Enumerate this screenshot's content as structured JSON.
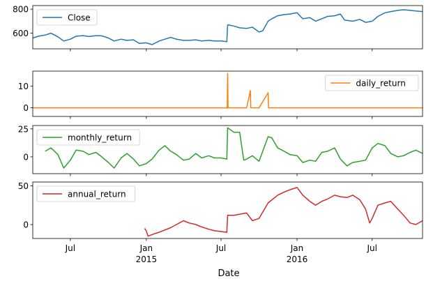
{
  "chart_data": {
    "type": "line",
    "xlabel": "Date",
    "x_range": [
      "2014-04-01",
      "2016-10-31"
    ],
    "x_ticks": [
      {
        "date": "2014-07-01",
        "label": "Jul",
        "sub": "",
        "major": false
      },
      {
        "date": "2015-01-01",
        "label": "Jan",
        "sub": "2015",
        "major": true
      },
      {
        "date": "2015-07-01",
        "label": "Jul",
        "sub": "",
        "major": false
      },
      {
        "date": "2016-01-01",
        "label": "Jan",
        "sub": "2016",
        "major": true
      },
      {
        "date": "2016-07-01",
        "label": "Jul",
        "sub": "",
        "major": false
      }
    ],
    "panels": [
      {
        "name": "Close",
        "color": "#1f77b4",
        "ylim": [
          470,
          830
        ],
        "yticks": [
          600,
          800
        ],
        "legend": "top-left",
        "points": [
          [
            "2014-04-01",
            560
          ],
          [
            "2014-04-15",
            575
          ],
          [
            "2014-05-01",
            585
          ],
          [
            "2014-05-15",
            600
          ],
          [
            "2014-06-01",
            570
          ],
          [
            "2014-06-15",
            535
          ],
          [
            "2014-07-01",
            550
          ],
          [
            "2014-07-15",
            575
          ],
          [
            "2014-08-01",
            580
          ],
          [
            "2014-08-15",
            572
          ],
          [
            "2014-09-01",
            580
          ],
          [
            "2014-09-15",
            578
          ],
          [
            "2014-10-01",
            560
          ],
          [
            "2014-10-15",
            535
          ],
          [
            "2014-11-01",
            550
          ],
          [
            "2014-11-15",
            540
          ],
          [
            "2014-12-01",
            545
          ],
          [
            "2014-12-15",
            515
          ],
          [
            "2015-01-01",
            520
          ],
          [
            "2015-01-15",
            505
          ],
          [
            "2015-02-01",
            535
          ],
          [
            "2015-02-15",
            550
          ],
          [
            "2015-03-01",
            565
          ],
          [
            "2015-03-15",
            550
          ],
          [
            "2015-04-01",
            540
          ],
          [
            "2015-04-15",
            540
          ],
          [
            "2015-05-01",
            545
          ],
          [
            "2015-05-15",
            535
          ],
          [
            "2015-06-01",
            540
          ],
          [
            "2015-06-15",
            535
          ],
          [
            "2015-07-01",
            535
          ],
          [
            "2015-07-15",
            530
          ],
          [
            "2015-07-17",
            670
          ],
          [
            "2015-08-01",
            660
          ],
          [
            "2015-08-15",
            645
          ],
          [
            "2015-09-01",
            640
          ],
          [
            "2015-09-15",
            650
          ],
          [
            "2015-10-01",
            610
          ],
          [
            "2015-10-10",
            620
          ],
          [
            "2015-10-23",
            700
          ],
          [
            "2015-11-01",
            720
          ],
          [
            "2015-11-15",
            745
          ],
          [
            "2015-12-01",
            755
          ],
          [
            "2015-12-15",
            760
          ],
          [
            "2016-01-01",
            770
          ],
          [
            "2016-01-15",
            720
          ],
          [
            "2016-02-01",
            730
          ],
          [
            "2016-02-15",
            700
          ],
          [
            "2016-03-01",
            720
          ],
          [
            "2016-03-15",
            740
          ],
          [
            "2016-04-01",
            745
          ],
          [
            "2016-04-15",
            760
          ],
          [
            "2016-04-25",
            710
          ],
          [
            "2016-05-15",
            700
          ],
          [
            "2016-06-01",
            715
          ],
          [
            "2016-06-15",
            690
          ],
          [
            "2016-07-01",
            700
          ],
          [
            "2016-07-15",
            740
          ],
          [
            "2016-08-01",
            770
          ],
          [
            "2016-08-15",
            780
          ],
          [
            "2016-09-01",
            790
          ],
          [
            "2016-09-15",
            795
          ],
          [
            "2016-10-01",
            790
          ],
          [
            "2016-10-15",
            785
          ],
          [
            "2016-10-31",
            780
          ]
        ]
      },
      {
        "name": "daily_return",
        "color": "#ff7f0e",
        "ylim": [
          -4,
          17
        ],
        "yticks": [
          0,
          10
        ],
        "legend": "top-right",
        "points": [
          [
            "2014-04-01",
            0
          ],
          [
            "2014-06-01",
            0
          ],
          [
            "2014-08-01",
            0
          ],
          [
            "2014-10-01",
            0
          ],
          [
            "2014-12-01",
            0
          ],
          [
            "2015-02-01",
            0
          ],
          [
            "2015-04-01",
            0
          ],
          [
            "2015-06-01",
            0
          ],
          [
            "2015-07-16",
            0
          ],
          [
            "2015-07-17",
            16
          ],
          [
            "2015-07-18",
            0
          ],
          [
            "2015-08-01",
            0
          ],
          [
            "2015-09-01",
            0
          ],
          [
            "2015-09-10",
            8
          ],
          [
            "2015-09-11",
            0
          ],
          [
            "2015-10-01",
            0
          ],
          [
            "2015-10-23",
            7
          ],
          [
            "2015-10-24",
            0
          ],
          [
            "2016-01-01",
            0
          ],
          [
            "2016-03-01",
            0
          ],
          [
            "2016-05-01",
            0
          ],
          [
            "2016-07-01",
            0
          ],
          [
            "2016-09-01",
            0
          ],
          [
            "2016-10-31",
            0
          ]
        ]
      },
      {
        "name": "monthly_return",
        "color": "#2ca02c",
        "ylim": [
          -15,
          28
        ],
        "yticks": [
          0,
          25
        ],
        "legend": "top-left",
        "points": [
          [
            "2014-05-01",
            5
          ],
          [
            "2014-05-15",
            8
          ],
          [
            "2014-06-01",
            2
          ],
          [
            "2014-06-15",
            -10
          ],
          [
            "2014-07-01",
            -3
          ],
          [
            "2014-07-15",
            6
          ],
          [
            "2014-08-01",
            5
          ],
          [
            "2014-08-15",
            2
          ],
          [
            "2014-09-01",
            4
          ],
          [
            "2014-09-15",
            0
          ],
          [
            "2014-10-01",
            -5
          ],
          [
            "2014-10-15",
            -10
          ],
          [
            "2014-11-01",
            -1
          ],
          [
            "2014-11-15",
            3
          ],
          [
            "2014-12-01",
            -2
          ],
          [
            "2014-12-15",
            -8
          ],
          [
            "2015-01-01",
            -6
          ],
          [
            "2015-01-15",
            -2
          ],
          [
            "2015-02-01",
            6
          ],
          [
            "2015-02-15",
            10
          ],
          [
            "2015-03-01",
            5
          ],
          [
            "2015-03-15",
            2
          ],
          [
            "2015-04-01",
            -3
          ],
          [
            "2015-04-15",
            -2
          ],
          [
            "2015-05-01",
            3
          ],
          [
            "2015-05-15",
            -1
          ],
          [
            "2015-06-01",
            1
          ],
          [
            "2015-06-15",
            -1
          ],
          [
            "2015-07-01",
            -1
          ],
          [
            "2015-07-15",
            -2
          ],
          [
            "2015-07-17",
            26
          ],
          [
            "2015-08-01",
            22
          ],
          [
            "2015-08-15",
            22
          ],
          [
            "2015-08-25",
            -3
          ],
          [
            "2015-09-01",
            -2
          ],
          [
            "2015-09-15",
            1
          ],
          [
            "2015-10-01",
            -4
          ],
          [
            "2015-10-23",
            18
          ],
          [
            "2015-11-01",
            17
          ],
          [
            "2015-11-15",
            8
          ],
          [
            "2015-12-01",
            5
          ],
          [
            "2015-12-15",
            2
          ],
          [
            "2016-01-01",
            1
          ],
          [
            "2016-01-15",
            -5
          ],
          [
            "2016-02-01",
            -3
          ],
          [
            "2016-02-15",
            -4
          ],
          [
            "2016-03-01",
            4
          ],
          [
            "2016-03-15",
            5
          ],
          [
            "2016-04-01",
            8
          ],
          [
            "2016-04-15",
            -2
          ],
          [
            "2016-05-01",
            -8
          ],
          [
            "2016-05-15",
            -5
          ],
          [
            "2016-06-01",
            -4
          ],
          [
            "2016-06-15",
            -3
          ],
          [
            "2016-07-01",
            8
          ],
          [
            "2016-07-15",
            12
          ],
          [
            "2016-08-01",
            10
          ],
          [
            "2016-08-15",
            3
          ],
          [
            "2016-09-01",
            0
          ],
          [
            "2016-09-15",
            1
          ],
          [
            "2016-10-01",
            4
          ],
          [
            "2016-10-15",
            6
          ],
          [
            "2016-10-31",
            3
          ]
        ]
      },
      {
        "name": "annual_return",
        "color": "#d62728",
        "ylim": [
          -18,
          55
        ],
        "yticks": [
          0,
          50
        ],
        "legend": "top-left",
        "points": [
          [
            "2014-12-28",
            -5
          ],
          [
            "2015-01-01",
            -8
          ],
          [
            "2015-01-05",
            -15
          ],
          [
            "2015-01-20",
            -12
          ],
          [
            "2015-02-01",
            -10
          ],
          [
            "2015-03-01",
            -4
          ],
          [
            "2015-04-01",
            5
          ],
          [
            "2015-04-15",
            2
          ],
          [
            "2015-05-01",
            0
          ],
          [
            "2015-05-15",
            -3
          ],
          [
            "2015-06-01",
            -6
          ],
          [
            "2015-06-15",
            -8
          ],
          [
            "2015-07-01",
            -9
          ],
          [
            "2015-07-15",
            -10
          ],
          [
            "2015-07-17",
            12
          ],
          [
            "2015-08-01",
            12
          ],
          [
            "2015-09-01",
            15
          ],
          [
            "2015-09-15",
            5
          ],
          [
            "2015-10-01",
            8
          ],
          [
            "2015-10-23",
            28
          ],
          [
            "2015-11-15",
            38
          ],
          [
            "2015-12-01",
            42
          ],
          [
            "2015-12-15",
            45
          ],
          [
            "2016-01-01",
            48
          ],
          [
            "2016-01-15",
            38
          ],
          [
            "2016-02-01",
            30
          ],
          [
            "2016-02-15",
            25
          ],
          [
            "2016-03-01",
            30
          ],
          [
            "2016-03-15",
            33
          ],
          [
            "2016-04-01",
            38
          ],
          [
            "2016-04-15",
            36
          ],
          [
            "2016-05-01",
            35
          ],
          [
            "2016-05-15",
            38
          ],
          [
            "2016-06-01",
            32
          ],
          [
            "2016-06-15",
            20
          ],
          [
            "2016-06-25",
            2
          ],
          [
            "2016-07-01",
            8
          ],
          [
            "2016-07-15",
            25
          ],
          [
            "2016-08-01",
            28
          ],
          [
            "2016-08-15",
            30
          ],
          [
            "2016-09-01",
            20
          ],
          [
            "2016-09-15",
            12
          ],
          [
            "2016-10-01",
            2
          ],
          [
            "2016-10-15",
            0
          ],
          [
            "2016-10-31",
            5
          ]
        ]
      }
    ]
  }
}
